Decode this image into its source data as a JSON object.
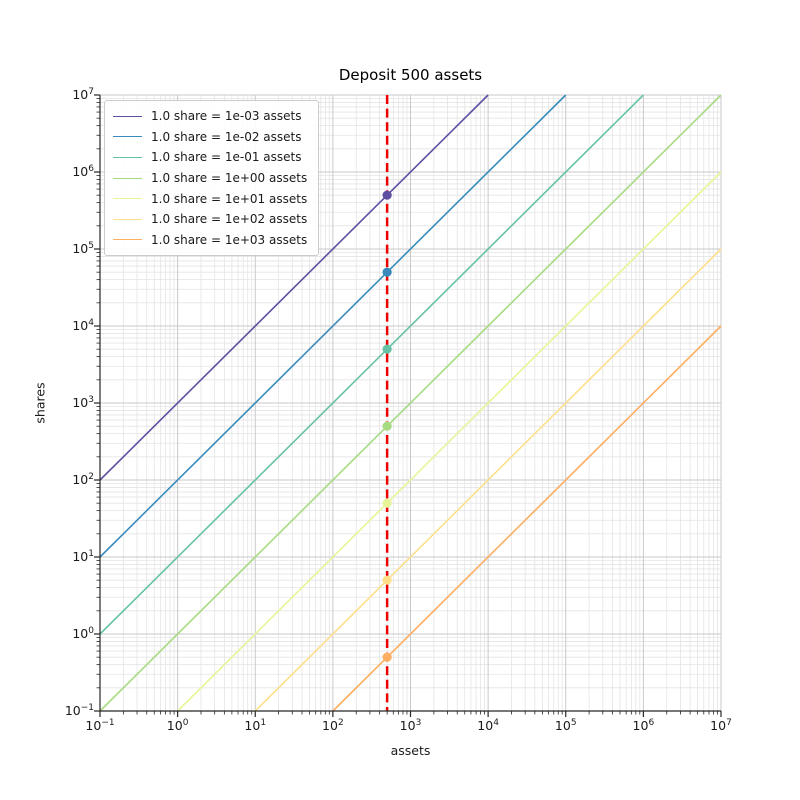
{
  "figure": {
    "background": "#ffffff"
  },
  "chart_data": {
    "type": "line",
    "title": "Deposit 500 assets",
    "xlabel": "assets",
    "ylabel": "shares",
    "xscale": "log",
    "yscale": "log",
    "xlim": [
      0.1,
      10000000
    ],
    "ylim": [
      0.1,
      10000000
    ],
    "xlim_exponents": [
      -1,
      7
    ],
    "ylim_exponents": [
      -1,
      7
    ],
    "x_tick_exponents": [
      -1,
      0,
      1,
      2,
      3,
      4,
      5,
      6,
      7
    ],
    "y_tick_exponents": [
      -1,
      0,
      1,
      2,
      3,
      4,
      5,
      6,
      7
    ],
    "grid": {
      "major": true,
      "minor": true,
      "major_color": "#c9c9c9",
      "minor_color": "#e4e4e4"
    },
    "legend": {
      "position": "upper-left"
    },
    "deposit_assets": 500,
    "series": [
      {
        "label": "1.0 share = 1e-03 assets",
        "assets_per_share": 0.001,
        "color": "#5e4fa2",
        "point": {
          "assets": 500,
          "shares": 500000
        }
      },
      {
        "label": "1.0 share = 1e-02 assets",
        "assets_per_share": 0.01,
        "color": "#3a8bbd",
        "point": {
          "assets": 500,
          "shares": 50000
        }
      },
      {
        "label": "1.0 share = 1e-01 assets",
        "assets_per_share": 0.1,
        "color": "#66c2a5",
        "point": {
          "assets": 500,
          "shares": 5000
        }
      },
      {
        "label": "1.0 share = 1e+00 assets",
        "assets_per_share": 1,
        "color": "#a6db82",
        "point": {
          "assets": 500,
          "shares": 500
        }
      },
      {
        "label": "1.0 share = 1e+01 assets",
        "assets_per_share": 10,
        "color": "#e7f598",
        "point": {
          "assets": 500,
          "shares": 50
        }
      },
      {
        "label": "1.0 share = 1e+02 assets",
        "assets_per_share": 100,
        "color": "#fee08b",
        "point": {
          "assets": 500,
          "shares": 5
        }
      },
      {
        "label": "1.0 share = 1e+03 assets",
        "assets_per_share": 1000,
        "color": "#fdae61",
        "point": {
          "assets": 500,
          "shares": 0.5
        }
      }
    ],
    "vline": {
      "assets": 500,
      "color": "#ee0000",
      "style": "dashed"
    },
    "axes_colors": {
      "spine": "#262626",
      "tick": "#262626",
      "tick_label": "#1a1a1a",
      "title": "#000000"
    }
  }
}
